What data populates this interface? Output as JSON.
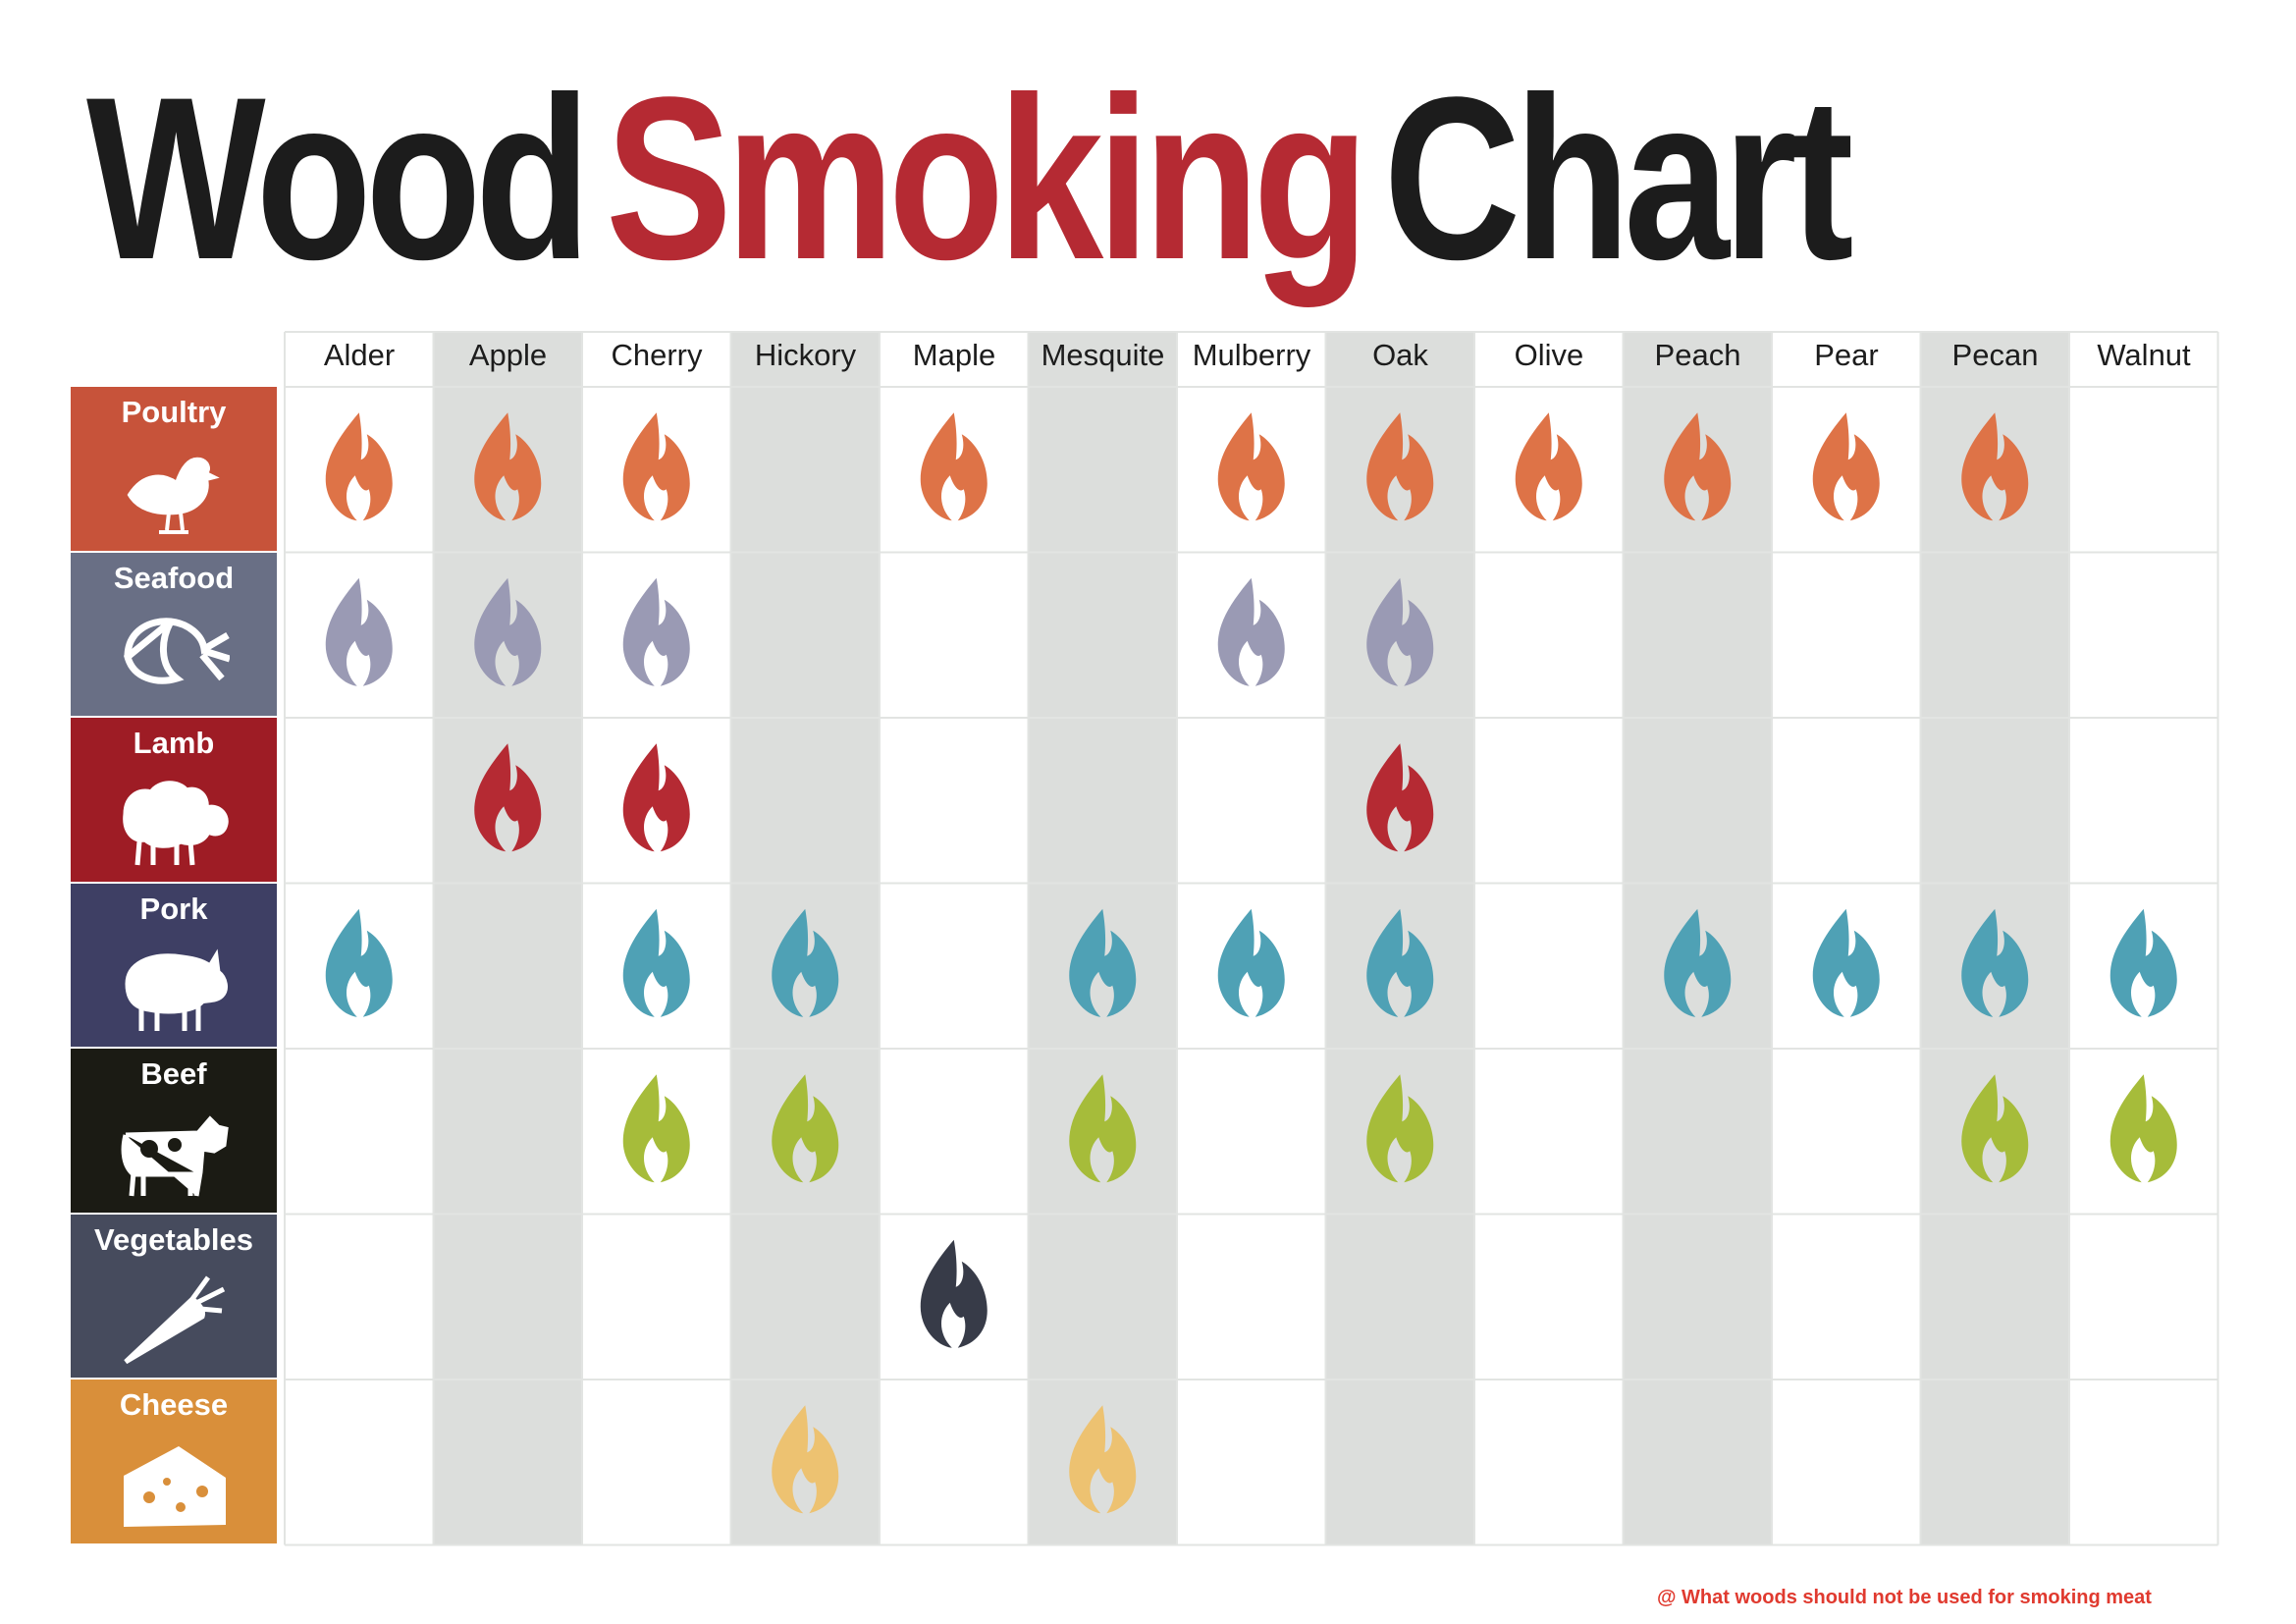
{
  "title": {
    "word1": "Wood",
    "word2": "Smoking",
    "word3": "Chart"
  },
  "caption": "@ What woods should not be used for smoking meat",
  "chart_data": {
    "type": "table",
    "title": "Wood Smoking Chart",
    "columns": [
      "Alder",
      "Apple",
      "Cherry",
      "Hickory",
      "Maple",
      "Mesquite",
      "Mulberry",
      "Oak",
      "Olive",
      "Peach",
      "Pear",
      "Pecan",
      "Walnut"
    ],
    "rows": [
      {
        "label": "Poultry",
        "color": "#c7533a",
        "flame_color": "#de7347",
        "icon": "chicken-icon",
        "cells": [
          1,
          1,
          1,
          0,
          1,
          0,
          1,
          1,
          1,
          1,
          1,
          1,
          0
        ]
      },
      {
        "label": "Seafood",
        "color": "#696f85",
        "flame_color": "#9a9ab4",
        "icon": "shrimp-icon",
        "cells": [
          1,
          1,
          1,
          0,
          0,
          0,
          1,
          1,
          0,
          0,
          0,
          0,
          0
        ]
      },
      {
        "label": "Lamb",
        "color": "#9e1c25",
        "flame_color": "#b52a33",
        "icon": "sheep-icon",
        "cells": [
          0,
          1,
          1,
          0,
          0,
          0,
          0,
          1,
          0,
          0,
          0,
          0,
          0
        ]
      },
      {
        "label": "Pork",
        "color": "#3e3f64",
        "flame_color": "#4fa1b5",
        "icon": "pig-icon",
        "cells": [
          1,
          0,
          1,
          1,
          0,
          1,
          1,
          1,
          0,
          1,
          1,
          1,
          1
        ]
      },
      {
        "label": "Beef",
        "color": "#1b1b14",
        "flame_color": "#a6bc3a",
        "icon": "cow-icon",
        "cells": [
          0,
          0,
          1,
          1,
          0,
          1,
          0,
          1,
          0,
          0,
          0,
          1,
          1
        ]
      },
      {
        "label": "Vegetables",
        "color": "#464b5d",
        "flame_color": "#373b48",
        "icon": "carrot-icon",
        "cells": [
          0,
          0,
          0,
          0,
          1,
          0,
          0,
          0,
          0,
          0,
          0,
          0,
          0
        ]
      },
      {
        "label": "Cheese",
        "color": "#d98f3a",
        "flame_color": "#edc271",
        "icon": "cheese-icon",
        "cells": [
          0,
          0,
          0,
          1,
          0,
          1,
          0,
          0,
          0,
          0,
          0,
          0,
          0
        ]
      }
    ],
    "legend": "none",
    "shaded_columns": [
      "Apple",
      "Hickory",
      "Mesquite",
      "Oak",
      "Peach",
      "Pecan"
    ],
    "colors": {
      "shade": "#dcdedc",
      "grid_line": "#e2e4e2",
      "title_dark": "#1c1c1c",
      "title_red": "#b52a33"
    }
  }
}
